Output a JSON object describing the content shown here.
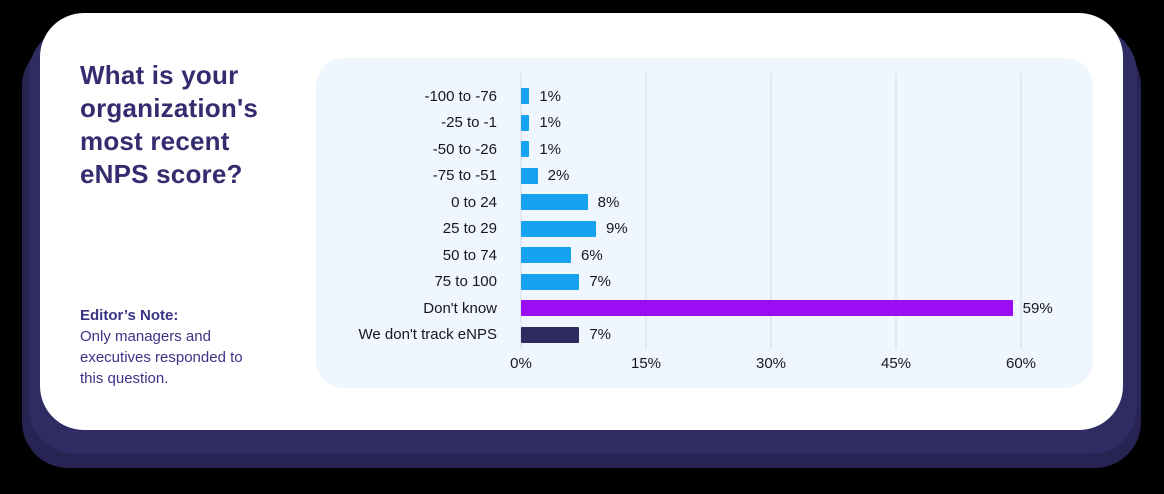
{
  "card": {
    "title": "What is your organization's most recent eNPS score?",
    "editor_note_label": "Editor’s Note:",
    "editor_note_text": "Only managers and executives responded to this question."
  },
  "colors": {
    "card_background": "#ffffff",
    "stack_background": "#2f2b63",
    "panel_background": "#eff6fd",
    "gridline": "#e2e8f1",
    "title_text": "#332c6e",
    "note_text": "#3a3384",
    "label_text": "#16181d",
    "bar_blue": "#17a2f0",
    "bar_purple": "#9b0df2",
    "bar_navy": "#2d2a5e"
  },
  "chart_data": {
    "type": "bar",
    "orientation": "horizontal",
    "title": "",
    "xlabel": "",
    "ylabel": "",
    "categories": [
      "-100 to -76",
      "-25 to -1",
      "-50 to -26",
      "-75 to -51",
      "0 to 24",
      "25 to 29",
      "50 to 74",
      "75 to 100",
      "Don't know",
      "We don't track eNPS"
    ],
    "values": [
      1,
      1,
      1,
      2,
      8,
      9,
      6,
      7,
      59,
      7
    ],
    "value_labels": [
      "1%",
      "1%",
      "1%",
      "2%",
      "8%",
      "9%",
      "6%",
      "7%",
      "59%",
      "7%"
    ],
    "bar_colors": [
      "#17a2f0",
      "#17a2f0",
      "#17a2f0",
      "#17a2f0",
      "#17a2f0",
      "#17a2f0",
      "#17a2f0",
      "#17a2f0",
      "#9b0df2",
      "#2d2a5e"
    ],
    "x_ticks": [
      "0%",
      "15%",
      "30%",
      "45%",
      "60%"
    ],
    "x_tick_values": [
      0,
      15,
      30,
      45,
      60
    ],
    "xlim": [
      0,
      60
    ],
    "grid": true,
    "legend": false
  }
}
